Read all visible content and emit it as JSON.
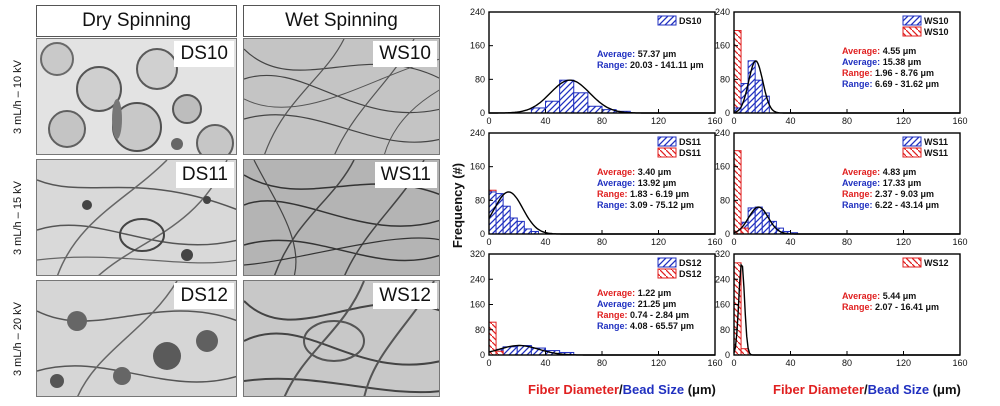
{
  "headers": {
    "dry": "Dry Spinning",
    "wet": "Wet Spinning"
  },
  "row_labels": [
    "3 mL/h – 10 kV",
    "3 mL/h – 15 kV",
    "3 mL/h – 20 kV"
  ],
  "micrographs": {
    "dry": [
      "DS10",
      "DS11",
      "DS12"
    ],
    "wet": [
      "WS10",
      "WS11",
      "WS12"
    ]
  },
  "axis": {
    "ylabel": "Frequency (#)",
    "xlabel_fiber": "Fiber Diameter",
    "xlabel_sep": "/",
    "xlabel_bead": "Bead Size",
    "xlabel_unit": " (μm)",
    "x_ticks": [
      0,
      40,
      80,
      120,
      160
    ]
  },
  "colors": {
    "bead": "#2030c0",
    "fiber": "#e02020",
    "fit": "#000000"
  },
  "chart_data": [
    {
      "type": "bar",
      "sample": "DS10",
      "ylim": [
        0,
        240
      ],
      "yticks": [
        0,
        80,
        160,
        240
      ],
      "legend": [
        {
          "name": "DS10",
          "kind": "bead"
        }
      ],
      "series": [
        {
          "kind": "bead",
          "bin_width": 10,
          "bins": [
            [
              30,
              12
            ],
            [
              40,
              28
            ],
            [
              50,
              78
            ],
            [
              60,
              48
            ],
            [
              70,
              16
            ],
            [
              80,
              8
            ],
            [
              90,
              4
            ]
          ]
        }
      ],
      "fit": {
        "mean": 57.37,
        "sd": 14,
        "peak": 78
      },
      "stats": [
        {
          "label": "Average:",
          "value": "57.37 μm",
          "kind": "bead"
        },
        {
          "label": "Range:",
          "value": "20.03 - 141.11 μm",
          "kind": "bead"
        }
      ]
    },
    {
      "type": "bar",
      "sample": "WS10",
      "ylim": [
        0,
        240
      ],
      "yticks": [
        0,
        80,
        160,
        240
      ],
      "legend": [
        {
          "name": "WS10",
          "kind": "bead"
        },
        {
          "name": "WS10",
          "kind": "fiber"
        }
      ],
      "series": [
        {
          "kind": "fiber",
          "bin_width": 5,
          "bins": [
            [
              0,
              196
            ],
            [
              5,
              12
            ]
          ]
        },
        {
          "kind": "bead",
          "bin_width": 5,
          "bins": [
            [
              0,
              12
            ],
            [
              5,
              70
            ],
            [
              10,
              124
            ],
            [
              15,
              78
            ],
            [
              20,
              40
            ]
          ]
        }
      ],
      "fit": {
        "mean": 15.38,
        "sd": 5,
        "peak": 124
      },
      "stats": [
        {
          "label": "Average:",
          "value": "4.55 μm",
          "kind": "fiber"
        },
        {
          "label": "Average:",
          "value": "15.38 μm",
          "kind": "bead"
        },
        {
          "label": "Range:",
          "value": "1.96 - 8.76 μm",
          "kind": "fiber"
        },
        {
          "label": "Range:",
          "value": "6.69 - 31.62 μm",
          "kind": "bead"
        }
      ]
    },
    {
      "type": "bar",
      "sample": "DS11",
      "ylim": [
        0,
        240
      ],
      "yticks": [
        0,
        80,
        160,
        240
      ],
      "legend": [
        {
          "name": "DS11",
          "kind": "bead"
        },
        {
          "name": "DS11",
          "kind": "fiber"
        }
      ],
      "series": [
        {
          "kind": "fiber",
          "bin_width": 5,
          "bins": [
            [
              0,
              104
            ],
            [
              5,
              8
            ]
          ]
        },
        {
          "kind": "bead",
          "bin_width": 5,
          "bins": [
            [
              0,
              100
            ],
            [
              5,
              96
            ],
            [
              10,
              66
            ],
            [
              15,
              38
            ],
            [
              20,
              30
            ],
            [
              25,
              12
            ],
            [
              30,
              6
            ]
          ]
        }
      ],
      "fit": {
        "mean": 13.92,
        "sd": 10,
        "peak": 100
      },
      "stats": [
        {
          "label": "Average:",
          "value": "3.40 μm",
          "kind": "fiber"
        },
        {
          "label": "Average:",
          "value": "13.92 μm",
          "kind": "bead"
        },
        {
          "label": "Range:",
          "value": "1.83 - 6.19 μm",
          "kind": "fiber"
        },
        {
          "label": "Range:",
          "value": "3.09 - 75.12 μm",
          "kind": "bead"
        }
      ]
    },
    {
      "type": "bar",
      "sample": "WS11",
      "ylim": [
        0,
        240
      ],
      "yticks": [
        0,
        80,
        160,
        240
      ],
      "legend": [
        {
          "name": "WS11",
          "kind": "bead"
        },
        {
          "name": "WS11",
          "kind": "fiber"
        }
      ],
      "series": [
        {
          "kind": "bead",
          "bin_width": 5,
          "bins": [
            [
              0,
              12
            ],
            [
              5,
              28
            ],
            [
              10,
              62
            ],
            [
              15,
              64
            ],
            [
              20,
              50
            ],
            [
              25,
              30
            ],
            [
              30,
              14
            ],
            [
              35,
              6
            ],
            [
              40,
              3
            ]
          ]
        },
        {
          "kind": "fiber",
          "bin_width": 5,
          "bins": [
            [
              0,
              198
            ],
            [
              5,
              14
            ]
          ]
        }
      ],
      "fit": {
        "mean": 17.33,
        "sd": 7,
        "peak": 64
      },
      "stats": [
        {
          "label": "Average:",
          "value": "4.83 μm",
          "kind": "fiber"
        },
        {
          "label": "Average:",
          "value": "17.33 μm",
          "kind": "bead"
        },
        {
          "label": "Range:",
          "value": "2.37 - 9.03 μm",
          "kind": "fiber"
        },
        {
          "label": "Range:",
          "value": "6.22 - 43.14 μm",
          "kind": "bead"
        }
      ]
    },
    {
      "type": "bar",
      "sample": "DS12",
      "ylim": [
        0,
        320
      ],
      "yticks": [
        0,
        80,
        160,
        240,
        320
      ],
      "legend": [
        {
          "name": "DS12",
          "kind": "bead"
        },
        {
          "name": "DS12",
          "kind": "fiber"
        }
      ],
      "series": [
        {
          "kind": "bead",
          "bin_width": 10,
          "bins": [
            [
              0,
              18
            ],
            [
              10,
              26
            ],
            [
              20,
              30
            ],
            [
              30,
              22
            ],
            [
              40,
              14
            ],
            [
              50,
              8
            ]
          ]
        },
        {
          "kind": "fiber",
          "bin_width": 5,
          "bins": [
            [
              0,
              104
            ],
            [
              5,
              12
            ]
          ]
        }
      ],
      "fit": {
        "mean": 21.25,
        "sd": 14,
        "peak": 30
      },
      "stats": [
        {
          "label": "Average:",
          "value": "1.22 μm",
          "kind": "fiber"
        },
        {
          "label": "Average:",
          "value": "21.25 μm",
          "kind": "bead"
        },
        {
          "label": "Range:",
          "value": "0.74 - 2.84 μm",
          "kind": "fiber"
        },
        {
          "label": "Range:",
          "value": "4.08 - 65.57 μm",
          "kind": "bead"
        }
      ]
    },
    {
      "type": "bar",
      "sample": "WS12",
      "ylim": [
        0,
        320
      ],
      "yticks": [
        0,
        80,
        160,
        240,
        320
      ],
      "legend": [
        {
          "name": "WS12",
          "kind": "fiber"
        }
      ],
      "series": [
        {
          "kind": "fiber",
          "bin_width": 5,
          "bins": [
            [
              0,
              292
            ],
            [
              5,
              20
            ]
          ]
        }
      ],
      "fit": {
        "mean": 5.44,
        "sd": 2,
        "peak": 292
      },
      "stats": [
        {
          "label": "Average:",
          "value": "5.44 μm",
          "kind": "fiber"
        },
        {
          "label": "Range:",
          "value": "2.07 - 16.41 μm",
          "kind": "fiber"
        }
      ]
    }
  ]
}
